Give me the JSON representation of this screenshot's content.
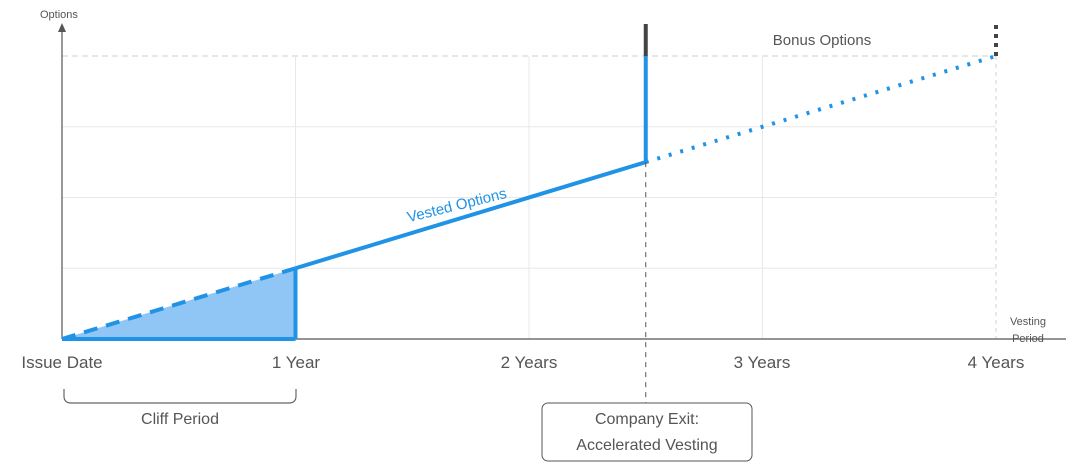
{
  "chart_data": {
    "type": "line",
    "title": "",
    "ylabel": "Options",
    "xlabel": [
      "Vesting",
      "Period"
    ],
    "x_ticks": [
      {
        "x": 0,
        "label": "Issue Date"
      },
      {
        "x": 1,
        "label": "1 Year"
      },
      {
        "x": 2,
        "label": "2 Years"
      },
      {
        "x": 3,
        "label": "3 Years"
      },
      {
        "x": 4,
        "label": "4 Years"
      }
    ],
    "xlim": [
      0,
      4
    ],
    "ylim": [
      0,
      1
    ],
    "grid": true,
    "series": [
      {
        "name": "Vested Options",
        "style": "solid",
        "points": [
          [
            1,
            0.25
          ],
          [
            2.5,
            0.625
          ]
        ]
      },
      {
        "style": "dotted",
        "points": [
          [
            2.5,
            0.625
          ],
          [
            4,
            1
          ]
        ]
      },
      {
        "style": "dashed",
        "points": [
          [
            0,
            0
          ],
          [
            1,
            0.25
          ]
        ]
      }
    ],
    "cliff_fill": {
      "points": [
        [
          0,
          0
        ],
        [
          1,
          0.25
        ],
        [
          1,
          0
        ]
      ],
      "color": "#90c6f5"
    },
    "exit_x": 2.5,
    "annotations": {
      "vested_label": "Vested Options",
      "bonus_label": "Bonus Options",
      "cliff_label": "Cliff Period",
      "exit_label": [
        "Company Exit:",
        "Accelerated Vesting"
      ]
    },
    "colors": {
      "primary": "#2193e6",
      "fill": "#90c6f5",
      "axis": "#555555",
      "grid": "#e8e8e8",
      "dark": "#444444"
    }
  }
}
